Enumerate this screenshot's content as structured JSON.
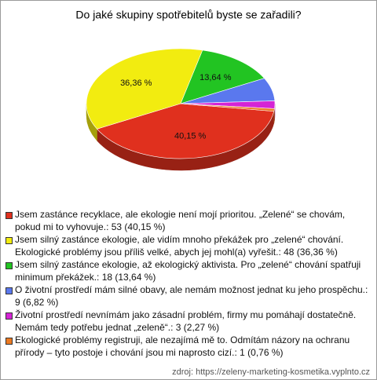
{
  "chart_data": {
    "type": "pie",
    "title": "Do jaké skupiny spotřebitelů byste se zařadili?",
    "categories": [
      "Jsem zastánce recyklace, ale ekologie není mojí prioritou. „Zelené“ se chovám, pokud mi to vyhovuje.: 53 (40,15 %)",
      "Jsem silný zastánce ekologie, ale vidím mnoho překážek pro „zelené“ chování. Ekologické problémy jsou příliš velké, abych jej mohl(a) vyřešit.: 48 (36,36 %)",
      "Jsem silný zastánce ekologie, až ekologický aktivista. Pro „zelené“ chování spatřuji minimum překážek.: 18 (13,64 %)",
      "O životní prostředí mám silné obavy, ale nemám možnost jednat ku jeho prospěchu.: 9 (6,82 %)",
      "Životní prostředí nevnímám jako zásadní problém, firmy mu pomáhají dostatečně. Nemám tedy potřebu jednat „zeleně“.: 3 (2,27 %)",
      "Ekologické problémy registruji, ale nezajímá mě to. Odmítám názory na ochranu přírody – tyto postoje i chování jsou mi naprosto cizí.: 1 (0,76 %)"
    ],
    "values": [
      40.15,
      36.36,
      13.64,
      6.82,
      2.27,
      0.76
    ],
    "value_labels": [
      "40,15 %",
      "36,36 %",
      "13,64 %",
      null,
      null,
      null
    ],
    "colors": [
      "#e0301e",
      "#f2ec10",
      "#22c422",
      "#5a78ee",
      "#d524d5",
      "#ec7a22"
    ],
    "source": "zdroj: https://zeleny-marketing-kosmetika.vyplnto.cz"
  }
}
